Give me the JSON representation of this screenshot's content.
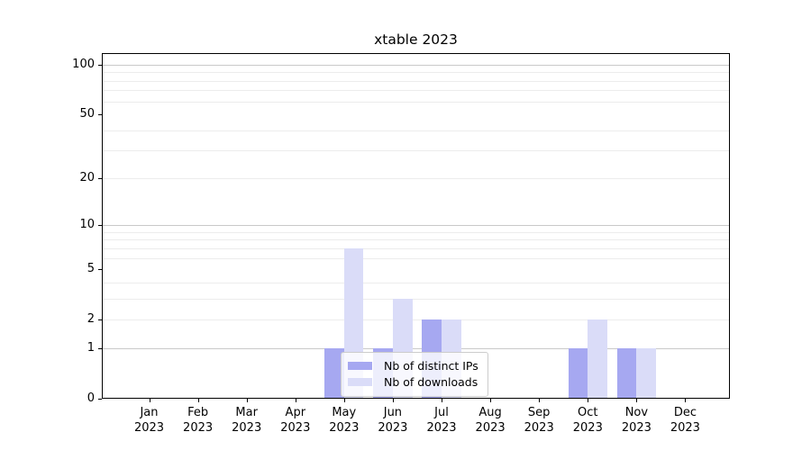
{
  "chart_data": {
    "type": "bar",
    "title": "xtable 2023",
    "year": "2023",
    "months": [
      "Jan",
      "Feb",
      "Mar",
      "Apr",
      "May",
      "Jun",
      "Jul",
      "Aug",
      "Sep",
      "Oct",
      "Nov",
      "Dec"
    ],
    "series": [
      {
        "name": "Nb of distinct IPs",
        "color": "#a6a8f1",
        "values": [
          0,
          0,
          0,
          0,
          1,
          1,
          2,
          0,
          0,
          1,
          1,
          0
        ]
      },
      {
        "name": "Nb of downloads",
        "color": "#dadcf8",
        "values": [
          0,
          0,
          0,
          0,
          7,
          3,
          2,
          0,
          0,
          2,
          1,
          0
        ]
      }
    ],
    "y_ticks": [
      0,
      1,
      2,
      5,
      10,
      20,
      50,
      100
    ],
    "y_scale": "log1p",
    "ylim": [
      0,
      117
    ],
    "grid": "both",
    "major_grid_values": [
      1,
      10,
      100
    ],
    "minor_grid_values": [
      2,
      3,
      4,
      6,
      7,
      8,
      9,
      20,
      30,
      40,
      60,
      70,
      80,
      90
    ],
    "legend_position": "lower center"
  },
  "colors": {
    "major_grid": "#c9c9c9",
    "minor_grid": "#ececec",
    "axis": "#000000",
    "legend_border": "#cccccc",
    "text": "#000000"
  }
}
